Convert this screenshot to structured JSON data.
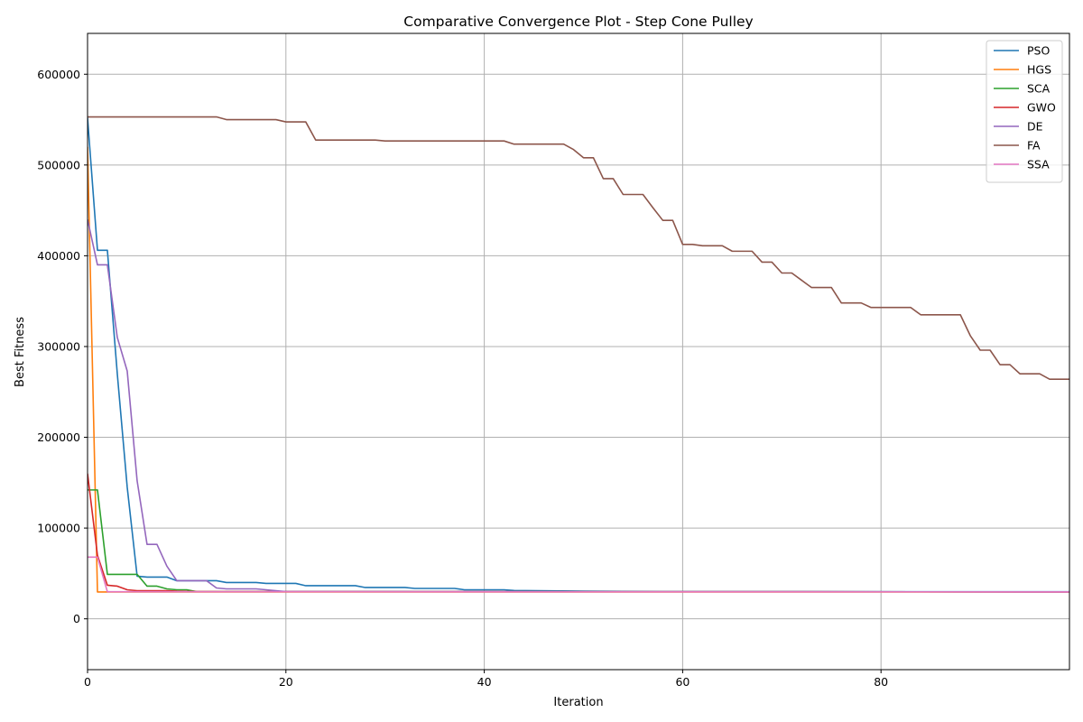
{
  "chart_data": {
    "type": "line",
    "title": "Comparative Convergence Plot - Step Cone Pulley",
    "xlabel": "Iteration",
    "ylabel": "Best Fitness",
    "xlim": [
      0,
      99
    ],
    "ylim": [
      -56000,
      645000
    ],
    "xticks": [
      0,
      20,
      40,
      60,
      80
    ],
    "yticks": [
      0,
      100000,
      200000,
      300000,
      400000,
      500000,
      600000
    ],
    "grid": true,
    "legend_position": "top-right",
    "series": [
      {
        "name": "PSO",
        "color": "#1f77b4",
        "points": [
          [
            0,
            552000
          ],
          [
            1,
            406000
          ],
          [
            2,
            406000
          ],
          [
            3,
            270000
          ],
          [
            4,
            145000
          ],
          [
            5,
            47000
          ],
          [
            6,
            46000
          ],
          [
            8,
            46000
          ],
          [
            9,
            42000
          ],
          [
            13,
            42000
          ],
          [
            14,
            40000
          ],
          [
            17,
            40000
          ],
          [
            18,
            39000
          ],
          [
            21,
            39000
          ],
          [
            22,
            36500
          ],
          [
            27,
            36500
          ],
          [
            28,
            34500
          ],
          [
            32,
            34500
          ],
          [
            33,
            33500
          ],
          [
            37,
            33500
          ],
          [
            38,
            32000
          ],
          [
            42,
            32000
          ],
          [
            43,
            31200
          ],
          [
            50,
            30500
          ],
          [
            58,
            30000
          ],
          [
            99,
            29800
          ]
        ]
      },
      {
        "name": "HGS",
        "color": "#ff7f0e",
        "points": [
          [
            0,
            520000
          ],
          [
            1,
            29600
          ],
          [
            99,
            29600
          ]
        ]
      },
      {
        "name": "SCA",
        "color": "#2ca02c",
        "points": [
          [
            0,
            142000
          ],
          [
            1,
            142000
          ],
          [
            2,
            49000
          ],
          [
            5,
            49000
          ],
          [
            6,
            36000
          ],
          [
            7,
            36000
          ],
          [
            8,
            33000
          ],
          [
            9,
            32000
          ],
          [
            10,
            32000
          ],
          [
            11,
            30000
          ],
          [
            99,
            29700
          ]
        ]
      },
      {
        "name": "GWO",
        "color": "#d62728",
        "points": [
          [
            0,
            160000
          ],
          [
            1,
            70000
          ],
          [
            2,
            37000
          ],
          [
            3,
            36000
          ],
          [
            4,
            32000
          ],
          [
            5,
            31000
          ],
          [
            8,
            31000
          ],
          [
            9,
            30500
          ],
          [
            11,
            30000
          ],
          [
            99,
            29700
          ]
        ]
      },
      {
        "name": "DE",
        "color": "#9467bd",
        "points": [
          [
            0,
            440000
          ],
          [
            1,
            390000
          ],
          [
            2,
            390000
          ],
          [
            3,
            310000
          ],
          [
            4,
            273000
          ],
          [
            5,
            152000
          ],
          [
            6,
            82000
          ],
          [
            7,
            82000
          ],
          [
            8,
            58000
          ],
          [
            9,
            42000
          ],
          [
            12,
            42000
          ],
          [
            13,
            34000
          ],
          [
            14,
            33000
          ],
          [
            17,
            33000
          ],
          [
            18,
            32000
          ],
          [
            20,
            30000
          ],
          [
            99,
            29700
          ]
        ]
      },
      {
        "name": "FA",
        "color": "#8c564b",
        "points": [
          [
            0,
            553000
          ],
          [
            13,
            553000
          ],
          [
            14,
            550000
          ],
          [
            19,
            550000
          ],
          [
            20,
            547500
          ],
          [
            22,
            547500
          ],
          [
            23,
            527500
          ],
          [
            29,
            527500
          ],
          [
            30,
            526500
          ],
          [
            42,
            526500
          ],
          [
            43,
            523000
          ],
          [
            48,
            523000
          ],
          [
            49,
            517000
          ],
          [
            50,
            508000
          ],
          [
            51,
            508000
          ],
          [
            52,
            485000
          ],
          [
            53,
            485000
          ],
          [
            54,
            467500
          ],
          [
            56,
            467500
          ],
          [
            57,
            453000
          ],
          [
            58,
            439000
          ],
          [
            59,
            439000
          ],
          [
            60,
            412500
          ],
          [
            61,
            412500
          ],
          [
            62,
            411000
          ],
          [
            64,
            411000
          ],
          [
            65,
            405000
          ],
          [
            67,
            405000
          ],
          [
            68,
            393000
          ],
          [
            69,
            393000
          ],
          [
            70,
            381000
          ],
          [
            71,
            381000
          ],
          [
            72,
            373000
          ],
          [
            73,
            365000
          ],
          [
            75,
            365000
          ],
          [
            76,
            348000
          ],
          [
            78,
            348000
          ],
          [
            79,
            343000
          ],
          [
            83,
            343000
          ],
          [
            84,
            335000
          ],
          [
            88,
            335000
          ],
          [
            89,
            312000
          ],
          [
            90,
            296000
          ],
          [
            91,
            296000
          ],
          [
            92,
            280000
          ],
          [
            93,
            280000
          ],
          [
            94,
            270000
          ],
          [
            96,
            270000
          ],
          [
            97,
            264000
          ],
          [
            99,
            264000
          ]
        ]
      },
      {
        "name": "SSA",
        "color": "#e377c2",
        "points": [
          [
            0,
            68000
          ],
          [
            1,
            68000
          ],
          [
            2,
            29800
          ],
          [
            99,
            29600
          ]
        ]
      }
    ]
  }
}
